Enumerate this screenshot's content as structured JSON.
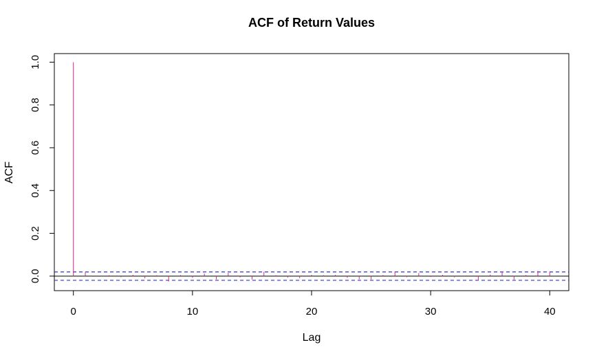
{
  "chart_data": {
    "type": "bar",
    "title": "ACF of Return Values",
    "xlabel": "Lag",
    "ylabel": "ACF",
    "xlim": [
      -1.6,
      41.6
    ],
    "ylim": [
      -0.068,
      1.04
    ],
    "x_ticks": [
      0,
      10,
      20,
      30,
      40
    ],
    "x_tick_labels": [
      "0",
      "10",
      "20",
      "30",
      "40"
    ],
    "y_ticks": [
      0.0,
      0.2,
      0.4,
      0.6,
      0.8,
      1.0
    ],
    "y_tick_labels": [
      "0.0",
      "0.2",
      "0.4",
      "0.6",
      "0.8",
      "1.0"
    ],
    "lags": [
      0,
      1,
      2,
      3,
      4,
      5,
      6,
      7,
      8,
      9,
      10,
      11,
      12,
      13,
      14,
      15,
      16,
      17,
      18,
      19,
      20,
      21,
      22,
      23,
      24,
      25,
      26,
      27,
      28,
      29,
      30,
      31,
      32,
      33,
      34,
      35,
      36,
      37,
      38,
      39,
      40
    ],
    "acf": [
      1.0,
      0.018,
      -0.003,
      0.004,
      -0.005,
      0.006,
      -0.01,
      0.004,
      -0.025,
      0.005,
      -0.008,
      0.012,
      -0.015,
      0.015,
      -0.006,
      -0.016,
      0.02,
      0.004,
      -0.007,
      -0.01,
      0.006,
      0.004,
      0.006,
      -0.008,
      -0.015,
      -0.016,
      0.005,
      0.022,
      -0.005,
      0.014,
      -0.004,
      0.006,
      -0.006,
      0.003,
      -0.02,
      0.007,
      0.02,
      -0.016,
      0.005,
      0.024,
      0.018
    ],
    "confidence_bound": 0.0196,
    "grid": false,
    "legend": "none",
    "colors": {
      "bars": "#e0218a",
      "confidence_lines": "#3333cc",
      "zero_line": "#000000",
      "axes": "#000000"
    }
  }
}
